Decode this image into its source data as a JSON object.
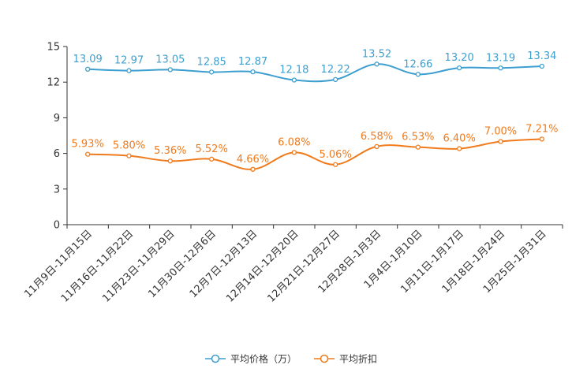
{
  "chart_data": {
    "type": "line",
    "categories": [
      "11月9日-11月15日",
      "11月16日-11月22日",
      "11月23日-11月29日",
      "11月30日-12月6日",
      "12月7日-12月13日",
      "12月14日-12月20日",
      "12月21日-12月27日",
      "12月28日-1月3日",
      "1月4日-1月10日",
      "1月11日-1月17日",
      "1月18日-1月24日",
      "1月25日-1月31日"
    ],
    "series": [
      {
        "name": "平均价格（万）",
        "color": "#3d9fcf",
        "values": [
          13.09,
          12.97,
          13.05,
          12.85,
          12.87,
          12.18,
          12.22,
          13.52,
          12.66,
          13.2,
          13.19,
          13.34
        ],
        "labels": [
          "13.09",
          "12.97",
          "13.05",
          "12.85",
          "12.87",
          "12.18",
          "12.22",
          "13.52",
          "12.66",
          "13.20",
          "13.19",
          "13.34"
        ]
      },
      {
        "name": "平均折扣",
        "color": "#f07b1d",
        "values": [
          5.93,
          5.8,
          5.36,
          5.52,
          4.66,
          6.08,
          5.06,
          6.58,
          6.53,
          6.4,
          7.0,
          7.21
        ],
        "labels": [
          "5.93%",
          "5.80%",
          "5.36%",
          "5.52%",
          "4.66%",
          "6.08%",
          "5.06%",
          "6.58%",
          "6.53%",
          "6.40%",
          "7.00%",
          "7.21%"
        ]
      }
    ],
    "yticks": [
      "0",
      "3",
      "6",
      "9",
      "12",
      "15"
    ],
    "ylim": [
      0,
      15
    ],
    "title": "",
    "xlabel": "",
    "ylabel": "",
    "legend_position": "bottom-center"
  }
}
